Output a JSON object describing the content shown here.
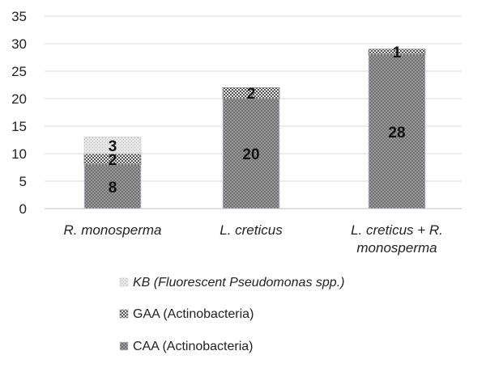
{
  "chart_data": {
    "type": "bar",
    "stacked": true,
    "categories": [
      [
        "R. monosperma"
      ],
      [
        "L. creticus"
      ],
      [
        "L. creticus + R.",
        "monosperma"
      ]
    ],
    "series": [
      {
        "name": "CAA (Actinobacteria)",
        "values": [
          8,
          20,
          28
        ],
        "color": "#7d7d7d"
      },
      {
        "name": "GAA (Actinobacteria)",
        "values": [
          2,
          2,
          1
        ],
        "color": "#9a9a9a"
      },
      {
        "name": "KB (Fluorescent Pseudomonas spp.)",
        "values": [
          3,
          0,
          0
        ],
        "color": "#e2e2e2"
      }
    ],
    "legend_order": [
      2,
      1,
      0
    ],
    "ylim": [
      0,
      35
    ],
    "yticks": [
      0,
      5,
      10,
      15,
      20,
      25,
      30,
      35
    ],
    "grid": true,
    "legend_position": "bottom",
    "title": "",
    "xlabel": "",
    "ylabel": ""
  }
}
